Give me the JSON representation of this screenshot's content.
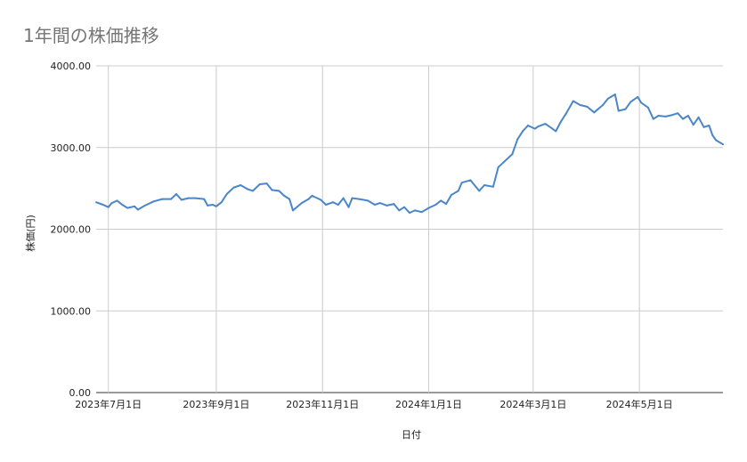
{
  "chart_data": {
    "type": "line",
    "title": "1年間の株価推移",
    "xlabel": "日付",
    "ylabel": "株価(円)",
    "ylim": [
      0,
      4000
    ],
    "grid": true,
    "y_ticks": [
      "0.00",
      "1000.00",
      "2000.00",
      "3000.00",
      "4000.00"
    ],
    "x_ticks": [
      {
        "label": "2023年7月1日",
        "date": "2023-07-01"
      },
      {
        "label": "2023年9月1日",
        "date": "2023-09-01"
      },
      {
        "label": "2023年11月1日",
        "date": "2023-11-01"
      },
      {
        "label": "2024年1月1日",
        "date": "2024-01-01"
      },
      {
        "label": "2024年3月1日",
        "date": "2024-03-01"
      },
      {
        "label": "2024年5月1日",
        "date": "2024-05-01"
      }
    ],
    "xlim": [
      "2023-06-24",
      "2024-06-18"
    ],
    "line_color": "#4a86c8",
    "series": [
      {
        "points": [
          [
            "2023-06-24",
            2330
          ],
          [
            "2023-06-28",
            2300
          ],
          [
            "2023-07-01",
            2270
          ],
          [
            "2023-07-03",
            2320
          ],
          [
            "2023-07-06",
            2350
          ],
          [
            "2023-07-09",
            2300
          ],
          [
            "2023-07-12",
            2260
          ],
          [
            "2023-07-16",
            2280
          ],
          [
            "2023-07-18",
            2240
          ],
          [
            "2023-07-22",
            2290
          ],
          [
            "2023-07-27",
            2340
          ],
          [
            "2023-08-01",
            2370
          ],
          [
            "2023-08-06",
            2370
          ],
          [
            "2023-08-09",
            2430
          ],
          [
            "2023-08-12",
            2360
          ],
          [
            "2023-08-16",
            2380
          ],
          [
            "2023-08-20",
            2380
          ],
          [
            "2023-08-25",
            2370
          ],
          [
            "2023-08-27",
            2290
          ],
          [
            "2023-08-30",
            2300
          ],
          [
            "2023-09-01",
            2280
          ],
          [
            "2023-09-04",
            2330
          ],
          [
            "2023-09-07",
            2430
          ],
          [
            "2023-09-11",
            2510
          ],
          [
            "2023-09-15",
            2540
          ],
          [
            "2023-09-19",
            2490
          ],
          [
            "2023-09-22",
            2470
          ],
          [
            "2023-09-26",
            2550
          ],
          [
            "2023-09-30",
            2560
          ],
          [
            "2023-10-03",
            2480
          ],
          [
            "2023-10-07",
            2470
          ],
          [
            "2023-10-10",
            2410
          ],
          [
            "2023-10-13",
            2370
          ],
          [
            "2023-10-15",
            2230
          ],
          [
            "2023-10-20",
            2320
          ],
          [
            "2023-10-24",
            2370
          ],
          [
            "2023-10-26",
            2410
          ],
          [
            "2023-10-31",
            2360
          ],
          [
            "2023-11-03",
            2300
          ],
          [
            "2023-11-07",
            2330
          ],
          [
            "2023-11-10",
            2300
          ],
          [
            "2023-11-13",
            2380
          ],
          [
            "2023-11-16",
            2270
          ],
          [
            "2023-11-18",
            2380
          ],
          [
            "2023-11-22",
            2370
          ],
          [
            "2023-11-27",
            2350
          ],
          [
            "2023-12-01",
            2300
          ],
          [
            "2023-12-04",
            2320
          ],
          [
            "2023-12-08",
            2290
          ],
          [
            "2023-12-12",
            2310
          ],
          [
            "2023-12-15",
            2230
          ],
          [
            "2023-12-18",
            2270
          ],
          [
            "2023-12-21",
            2200
          ],
          [
            "2023-12-24",
            2230
          ],
          [
            "2023-12-28",
            2210
          ],
          [
            "2024-01-01",
            2260
          ],
          [
            "2024-01-05",
            2300
          ],
          [
            "2024-01-08",
            2350
          ],
          [
            "2024-01-11",
            2310
          ],
          [
            "2024-01-14",
            2420
          ],
          [
            "2024-01-18",
            2470
          ],
          [
            "2024-01-20",
            2570
          ],
          [
            "2024-01-25",
            2600
          ],
          [
            "2024-01-30",
            2470
          ],
          [
            "2024-02-02",
            2540
          ],
          [
            "2024-02-07",
            2520
          ],
          [
            "2024-02-10",
            2760
          ],
          [
            "2024-02-13",
            2820
          ],
          [
            "2024-02-18",
            2920
          ],
          [
            "2024-02-21",
            3100
          ],
          [
            "2024-02-24",
            3200
          ],
          [
            "2024-02-27",
            3270
          ],
          [
            "2024-03-02",
            3230
          ],
          [
            "2024-03-04",
            3260
          ],
          [
            "2024-03-08",
            3290
          ],
          [
            "2024-03-12",
            3230
          ],
          [
            "2024-03-14",
            3200
          ],
          [
            "2024-03-17",
            3320
          ],
          [
            "2024-03-20",
            3420
          ],
          [
            "2024-03-24",
            3570
          ],
          [
            "2024-03-28",
            3520
          ],
          [
            "2024-04-01",
            3500
          ],
          [
            "2024-04-05",
            3430
          ],
          [
            "2024-04-10",
            3520
          ],
          [
            "2024-04-13",
            3600
          ],
          [
            "2024-04-17",
            3650
          ],
          [
            "2024-04-19",
            3450
          ],
          [
            "2024-04-23",
            3470
          ],
          [
            "2024-04-26",
            3560
          ],
          [
            "2024-04-30",
            3620
          ],
          [
            "2024-05-02",
            3550
          ],
          [
            "2024-05-06",
            3490
          ],
          [
            "2024-05-09",
            3350
          ],
          [
            "2024-05-12",
            3390
          ],
          [
            "2024-05-16",
            3380
          ],
          [
            "2024-05-20",
            3400
          ],
          [
            "2024-05-23",
            3420
          ],
          [
            "2024-05-26",
            3350
          ],
          [
            "2024-05-29",
            3390
          ],
          [
            "2024-06-01",
            3280
          ],
          [
            "2024-06-04",
            3370
          ],
          [
            "2024-06-07",
            3250
          ],
          [
            "2024-06-10",
            3270
          ],
          [
            "2024-06-12",
            3150
          ],
          [
            "2024-06-14",
            3090
          ],
          [
            "2024-06-18",
            3040
          ]
        ]
      }
    ]
  }
}
